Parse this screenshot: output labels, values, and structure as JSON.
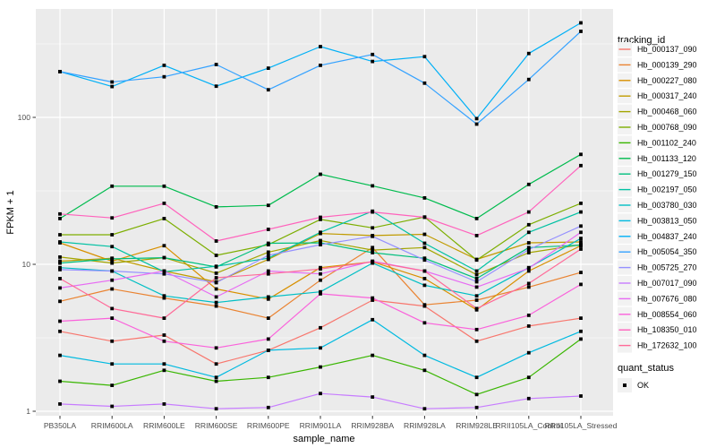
{
  "chart_data": {
    "type": "line",
    "xlabel": "sample_name",
    "ylabel": "FPKM + 1",
    "y_scale": "log10",
    "y_ticks": [
      "1",
      "10",
      "100"
    ],
    "y_tick_values": [
      1,
      10,
      100
    ],
    "y_minor_values": [
      3.162,
      31.62,
      316.2
    ],
    "ylim": [
      1,
      560
    ],
    "legend_title": "tracking_id",
    "quant_legend_title": "quant_status",
    "quant_legend_items": [
      {
        "label": "OK",
        "marker": "black-square"
      }
    ],
    "marker": "black-square",
    "categories": [
      "PB350LA",
      "RRIM600LA",
      "RRIM600LE",
      "RRIM600SE",
      "RRIM600PE",
      "RRIM901LA",
      "RRIM928BA",
      "RRIM928LA",
      "RRIM928LE",
      "RRII105LA_Control",
      "RRII105LA_Stressed"
    ],
    "series": [
      {
        "name": "Hb_000137_090",
        "color": "#F8766D",
        "values": [
          3.5,
          3.0,
          3.3,
          2.1,
          2.6,
          3.7,
          5.7,
          5.2,
          3.0,
          3.8,
          4.3
        ]
      },
      {
        "name": "Hb_000139_290",
        "color": "#EA8331",
        "values": [
          5.6,
          6.8,
          5.9,
          5.2,
          4.3,
          7.8,
          13.0,
          5.3,
          5.7,
          7.0,
          8.8
        ]
      },
      {
        "name": "Hb_000227_080",
        "color": "#D89000",
        "values": [
          14.0,
          10.5,
          13.4,
          6.8,
          5.8,
          9.5,
          10.4,
          8.0,
          4.9,
          9.0,
          13.4
        ]
      },
      {
        "name": "Hb_000317_240",
        "color": "#C09B00",
        "values": [
          10.5,
          11.0,
          9.0,
          7.6,
          10.8,
          16.2,
          15.7,
          16.0,
          10.8,
          14.0,
          14.2
        ]
      },
      {
        "name": "Hb_000468_060",
        "color": "#A3A500",
        "values": [
          11.2,
          10.2,
          11.1,
          8.7,
          12.1,
          14.5,
          12.5,
          13.0,
          8.5,
          12.0,
          13.6
        ]
      },
      {
        "name": "Hb_000768_090",
        "color": "#7CAE00",
        "values": [
          15.9,
          15.9,
          20.5,
          11.5,
          13.6,
          20.2,
          17.7,
          21.0,
          10.7,
          18.6,
          26.0
        ]
      },
      {
        "name": "Hb_001102_240",
        "color": "#39B600",
        "values": [
          1.6,
          1.5,
          1.9,
          1.6,
          1.7,
          2.0,
          2.4,
          1.9,
          1.3,
          1.7,
          3.1
        ]
      },
      {
        "name": "Hb_001133_120",
        "color": "#00BB4E",
        "values": [
          20.5,
          34.0,
          34.0,
          24.6,
          25.2,
          41.0,
          34.2,
          28.3,
          20.5,
          35.0,
          56.0
        ]
      },
      {
        "name": "Hb_001279_150",
        "color": "#00BF7D",
        "values": [
          10.2,
          10.9,
          11.1,
          9.6,
          13.9,
          14.0,
          12.0,
          11.0,
          8.0,
          13.0,
          13.5
        ]
      },
      {
        "name": "Hb_002197_050",
        "color": "#00C1A3",
        "values": [
          14.2,
          13.2,
          8.9,
          9.7,
          11.0,
          16.5,
          23.0,
          13.9,
          9.0,
          16.5,
          22.7
        ]
      },
      {
        "name": "Hb_003780_030",
        "color": "#00BFC4",
        "values": [
          9.5,
          9.0,
          6.1,
          5.5,
          6.0,
          6.5,
          10.2,
          7.2,
          6.1,
          9.5,
          15.0
        ]
      },
      {
        "name": "Hb_003813_050",
        "color": "#00BAE0",
        "values": [
          2.4,
          2.1,
          2.1,
          1.7,
          2.6,
          2.7,
          4.2,
          2.4,
          1.7,
          2.5,
          3.5
        ]
      },
      {
        "name": "Hb_004837_240",
        "color": "#00B0F6",
        "values": [
          205,
          162,
          226,
          163,
          216,
          303,
          240,
          259,
          98,
          272,
          440
        ]
      },
      {
        "name": "Hb_005054_350",
        "color": "#35A2FF",
        "values": [
          205,
          174,
          189,
          229,
          154,
          226,
          268,
          171,
          90,
          181,
          385
        ]
      },
      {
        "name": "Hb_005725_270",
        "color": "#9590FF",
        "values": [
          9.2,
          9.0,
          8.6,
          7.5,
          11.5,
          13.6,
          15.5,
          10.7,
          7.6,
          12.6,
          18.2
        ]
      },
      {
        "name": "Hb_007017_090",
        "color": "#C77CFF",
        "values": [
          1.12,
          1.08,
          1.12,
          1.04,
          1.06,
          1.32,
          1.25,
          1.04,
          1.06,
          1.22,
          1.27
        ]
      },
      {
        "name": "Hb_007676_080",
        "color": "#E76BF3",
        "values": [
          6.9,
          7.8,
          9.0,
          6.0,
          9.0,
          8.6,
          10.5,
          9.0,
          7.0,
          9.4,
          16.5
        ]
      },
      {
        "name": "Hb_008554_060",
        "color": "#FA62DB",
        "values": [
          4.1,
          4.3,
          3.0,
          2.7,
          3.1,
          6.3,
          5.9,
          4.0,
          3.6,
          4.5,
          7.3
        ]
      },
      {
        "name": "Hb_108350_010",
        "color": "#FF62BC",
        "values": [
          22.0,
          20.7,
          26.0,
          14.4,
          17.3,
          20.9,
          22.7,
          20.9,
          15.7,
          22.7,
          47.0
        ]
      },
      {
        "name": "Hb_172632_100",
        "color": "#FF6A98",
        "values": [
          8.0,
          5.0,
          4.3,
          8.1,
          8.6,
          9.3,
          10.4,
          9.0,
          5.0,
          7.4,
          12.7
        ]
      }
    ],
    "theme": {
      "panel_bg": "#EBEBEB",
      "grid_color": "#FFFFFF",
      "axis_text_color": "#4D4D4D",
      "title_color": "#000000",
      "legend_key_bg": "#F2F2F2",
      "point_color": "#000000",
      "tick_color": "#333333"
    }
  }
}
